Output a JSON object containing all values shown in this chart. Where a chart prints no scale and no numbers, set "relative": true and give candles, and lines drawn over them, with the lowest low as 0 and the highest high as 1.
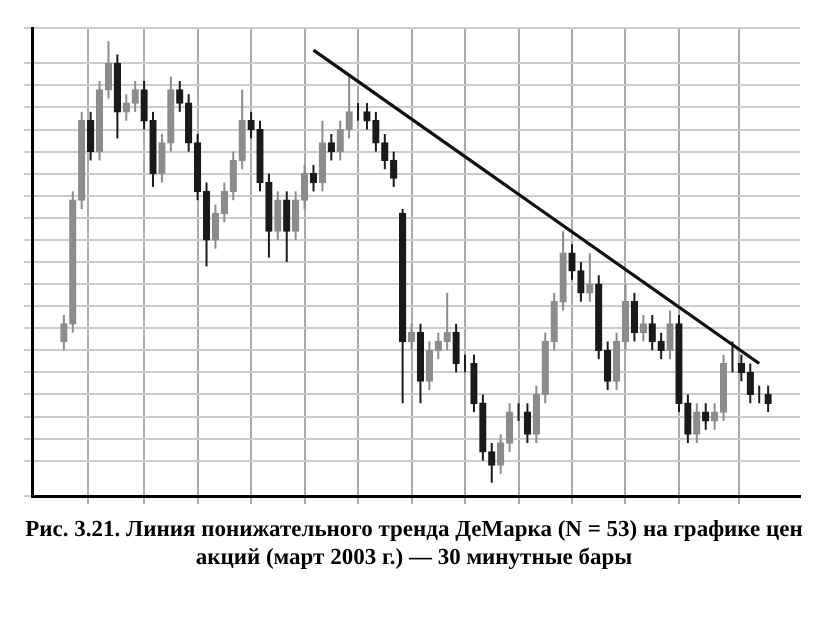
{
  "chart_data": {
    "type": "candlestick",
    "relative": true,
    "grid": true,
    "colors": [
      "#8c8c8c",
      "#8c8c8c",
      "#8c8c8c",
      "#1a1a1a",
      "#8c8c8c",
      "#8c8c8c",
      "#1a1a1a",
      "#8c8c8c",
      "#8c8c8c",
      "#1a1a1a",
      "#1a1a1a",
      "#8c8c8c",
      "#8c8c8c",
      "#1a1a1a",
      "#1a1a1a",
      "#1a1a1a",
      "#1a1a1a",
      "#8c8c8c",
      "#8c8c8c",
      "#8c8c8c",
      "#8c8c8c",
      "#1a1a1a",
      "#1a1a1a",
      "#1a1a1a",
      "#8c8c8c",
      "#1a1a1a",
      "#8c8c8c",
      "#8c8c8c",
      "#1a1a1a",
      "#8c8c8c",
      "#1a1a1a",
      "#8c8c8c",
      "#8c8c8c",
      "#1a1a1a",
      "#1a1a1a",
      "#1a1a1a",
      "#1a1a1a",
      "#1a1a1a",
      "#1a1a1a",
      "#8c8c8c",
      "#1a1a1a",
      "#8c8c8c",
      "#8c8c8c",
      "#8c8c8c",
      "#1a1a1a",
      "#1a1a1a",
      "#1a1a1a",
      "#1a1a1a",
      "#1a1a1a",
      "#8c8c8c",
      "#8c8c8c",
      "#1a1a1a",
      "#1a1a1a",
      "#8c8c8c",
      "#8c8c8c",
      "#8c8c8c",
      "#8c8c8c",
      "#1a1a1a",
      "#1a1a1a",
      "#8c8c8c",
      "#1a1a1a",
      "#1a1a1a",
      "#8c8c8c",
      "#8c8c8c",
      "#1a1a1a",
      "#8c8c8c",
      "#1a1a1a",
      "#1a1a1a",
      "#8c8c8c",
      "#1a1a1a",
      "#1a1a1a",
      "#8c8c8c",
      "#1a1a1a",
      "#8c8c8c",
      "#8c8c8c",
      "#1a1a1a",
      "#1a1a1a",
      "#1a1a1a",
      "#1a1a1a",
      "#1a1a1a"
    ],
    "title": "Рис. 3.21. Линия понижательного тренда ДеМарка (N = 53) на графике цен акций (март 2003 г.) — 30 минутные бары",
    "categories": [
      null,
      null,
      null,
      null,
      null,
      null,
      null,
      null,
      null,
      null,
      null,
      null,
      null,
      null,
      null,
      null,
      null,
      null,
      null,
      null,
      null,
      null,
      null,
      null,
      null,
      null,
      null,
      null,
      null,
      null,
      null,
      null,
      null,
      null,
      null,
      null,
      null,
      null,
      null,
      null,
      null,
      null,
      null,
      null,
      null,
      null,
      null,
      null,
      null,
      null,
      null,
      null,
      null,
      null,
      null,
      null,
      null,
      null,
      null,
      null,
      null,
      null,
      null,
      null,
      null,
      null,
      null,
      null,
      null,
      null,
      null,
      null,
      null,
      null,
      null,
      null,
      null,
      null,
      null,
      null
    ],
    "ohlc": [
      [
        0.32,
        0.38,
        0.3,
        0.36
      ],
      [
        0.36,
        0.66,
        0.34,
        0.64
      ],
      [
        0.64,
        0.84,
        0.62,
        0.82
      ],
      [
        0.82,
        0.84,
        0.73,
        0.75
      ],
      [
        0.75,
        0.91,
        0.73,
        0.89
      ],
      [
        0.89,
        1,
        0.87,
        0.95
      ],
      [
        0.95,
        0.97,
        0.78,
        0.84
      ],
      [
        0.84,
        0.88,
        0.82,
        0.86
      ],
      [
        0.86,
        0.91,
        0.84,
        0.89
      ],
      [
        0.89,
        0.91,
        0.8,
        0.82
      ],
      [
        0.82,
        0.84,
        0.67,
        0.7
      ],
      [
        0.7,
        0.79,
        0.68,
        0.77
      ],
      [
        0.77,
        0.92,
        0.75,
        0.89
      ],
      [
        0.89,
        0.91,
        0.84,
        0.86
      ],
      [
        0.86,
        0.88,
        0.75,
        0.77
      ],
      [
        0.77,
        0.79,
        0.64,
        0.66
      ],
      [
        0.66,
        0.68,
        0.49,
        0.55
      ],
      [
        0.55,
        0.63,
        0.53,
        0.61
      ],
      [
        0.61,
        0.68,
        0.59,
        0.66
      ],
      [
        0.66,
        0.75,
        0.64,
        0.73
      ],
      [
        0.73,
        0.89,
        0.71,
        0.82
      ],
      [
        0.82,
        0.84,
        0.78,
        0.8
      ],
      [
        0.8,
        0.82,
        0.66,
        0.68
      ],
      [
        0.68,
        0.7,
        0.51,
        0.57
      ],
      [
        0.57,
        0.66,
        0.55,
        0.64
      ],
      [
        0.64,
        0.66,
        0.5,
        0.57
      ],
      [
        0.57,
        0.66,
        0.55,
        0.64
      ],
      [
        0.64,
        0.72,
        0.62,
        0.7
      ],
      [
        0.7,
        0.72,
        0.66,
        0.68
      ],
      [
        0.68,
        0.82,
        0.66,
        0.77
      ],
      [
        0.77,
        0.79,
        0.73,
        0.75
      ],
      [
        0.75,
        0.82,
        0.73,
        0.8
      ],
      [
        0.8,
        0.92,
        0.78,
        0.84
      ],
      [
        0.84,
        0.86,
        0.82,
        0.84
      ],
      [
        0.84,
        0.86,
        0.8,
        0.82
      ],
      [
        0.82,
        0.84,
        0.75,
        0.77
      ],
      [
        0.77,
        0.79,
        0.71,
        0.73
      ],
      [
        0.73,
        0.75,
        0.67,
        0.69
      ],
      [
        0.61,
        0.62,
        0.18,
        0.32
      ],
      [
        0.32,
        0.36,
        0.3,
        0.34
      ],
      [
        0.34,
        0.36,
        0.18,
        0.23
      ],
      [
        0.23,
        0.32,
        0.21,
        0.3
      ],
      [
        0.3,
        0.34,
        0.28,
        0.32
      ],
      [
        0.32,
        0.43,
        0.3,
        0.34
      ],
      [
        0.34,
        0.36,
        0.25,
        0.27
      ],
      [
        0.27,
        0.29,
        0.25,
        0.27
      ],
      [
        0.27,
        0.29,
        0.16,
        0.18
      ],
      [
        0.18,
        0.2,
        0.05,
        0.07
      ],
      [
        0.07,
        0.09,
        0,
        0.04
      ],
      [
        0.04,
        0.11,
        0.02,
        0.09
      ],
      [
        0.09,
        0.18,
        0.07,
        0.16
      ],
      [
        0.16,
        0.18,
        0.14,
        0.16
      ],
      [
        0.16,
        0.18,
        0.09,
        0.11
      ],
      [
        0.11,
        0.22,
        0.09,
        0.2
      ],
      [
        0.2,
        0.34,
        0.18,
        0.32
      ],
      [
        0.32,
        0.43,
        0.3,
        0.41
      ],
      [
        0.41,
        0.57,
        0.39,
        0.52
      ],
      [
        0.52,
        0.54,
        0.46,
        0.48
      ],
      [
        0.48,
        0.5,
        0.41,
        0.43
      ],
      [
        0.43,
        0.52,
        0.41,
        0.45
      ],
      [
        0.45,
        0.47,
        0.28,
        0.3
      ],
      [
        0.3,
        0.32,
        0.21,
        0.23
      ],
      [
        0.23,
        0.34,
        0.21,
        0.32
      ],
      [
        0.32,
        0.45,
        0.3,
        0.41
      ],
      [
        0.41,
        0.43,
        0.32,
        0.34
      ],
      [
        0.34,
        0.38,
        0.32,
        0.36
      ],
      [
        0.36,
        0.38,
        0.3,
        0.32
      ],
      [
        0.32,
        0.34,
        0.28,
        0.3
      ],
      [
        0.3,
        0.39,
        0.28,
        0.36
      ],
      [
        0.36,
        0.38,
        0.16,
        0.18
      ],
      [
        0.18,
        0.2,
        0.09,
        0.11
      ],
      [
        0.11,
        0.18,
        0.09,
        0.16
      ],
      [
        0.16,
        0.18,
        0.12,
        0.14
      ],
      [
        0.14,
        0.18,
        0.12,
        0.16
      ],
      [
        0.16,
        0.29,
        0.14,
        0.27
      ],
      [
        0.27,
        0.32,
        0.25,
        0.27
      ],
      [
        0.27,
        0.29,
        0.23,
        0.25
      ],
      [
        0.25,
        0.27,
        0.18,
        0.2
      ],
      [
        0.2,
        0.22,
        0.18,
        0.2
      ],
      [
        0.2,
        0.22,
        0.16,
        0.18
      ]
    ],
    "series": [
      {
        "type": "line",
        "color": "#111111",
        "values": [
          null,
          null,
          null,
          null,
          null,
          null,
          null,
          null,
          null,
          null,
          null,
          null,
          null,
          null,
          null,
          null,
          null,
          null,
          null,
          null,
          null,
          null,
          null,
          null,
          null,
          null,
          null,
          null,
          0.98,
          null,
          null,
          null,
          null,
          null,
          null,
          null,
          null,
          null,
          null,
          null,
          null,
          null,
          null,
          null,
          null,
          null,
          null,
          null,
          null,
          null,
          null,
          null,
          null,
          null,
          null,
          null,
          null,
          null,
          null,
          null,
          null,
          null,
          null,
          null,
          null,
          null,
          null,
          null,
          null,
          null,
          null,
          null,
          null,
          null,
          null,
          null,
          null,
          null,
          0.27,
          null
        ]
      }
    ]
  }
}
